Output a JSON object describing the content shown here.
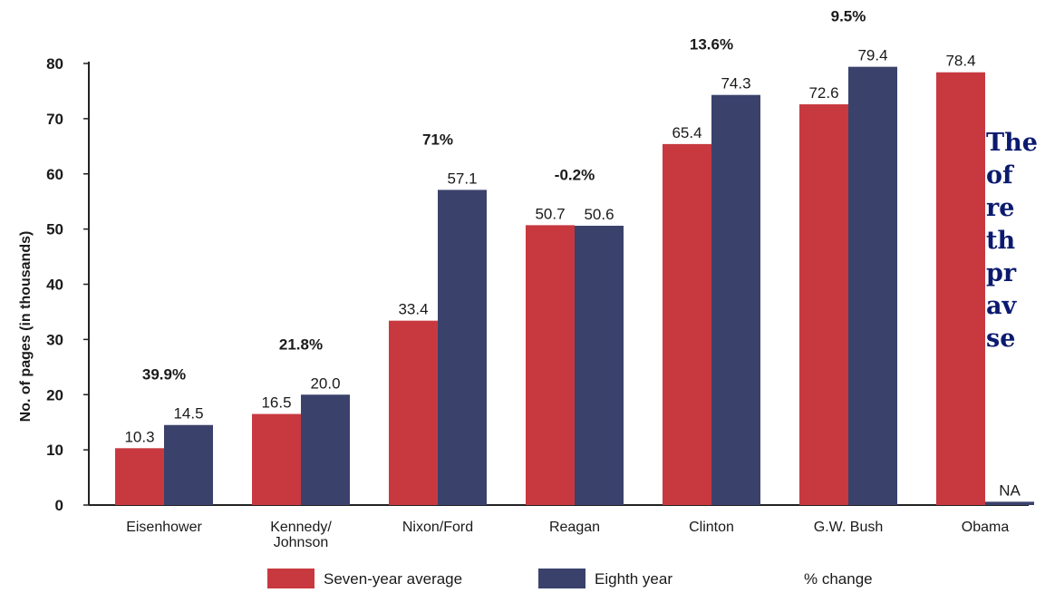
{
  "chart_data": {
    "type": "bar",
    "title": "",
    "ylabel": "No. of pages  (in thousands)",
    "xlabel": "",
    "ylim": [
      0,
      80
    ],
    "yticks": [
      0,
      10,
      20,
      30,
      40,
      50,
      60,
      70,
      80
    ],
    "categories": [
      [
        "Eisenhower"
      ],
      [
        "Kennedy/",
        "Johnson"
      ],
      [
        "Nixon/Ford"
      ],
      [
        "Reagan"
      ],
      [
        "Clinton"
      ],
      [
        "G.W. Bush"
      ],
      [
        "Obama"
      ]
    ],
    "series": [
      {
        "name": "Seven-year average",
        "color": "#c8393f",
        "values": [
          10.3,
          16.5,
          33.4,
          50.7,
          65.4,
          72.6,
          78.4
        ],
        "labels": [
          "10.3",
          "16.5",
          "33.4",
          "50.7",
          "65.4",
          "72.6",
          "78.4"
        ]
      },
      {
        "name": "Eighth year",
        "color": "#3a426c",
        "values": [
          14.5,
          20.0,
          57.1,
          50.6,
          74.3,
          79.4,
          0.6
        ],
        "labels": [
          "14.5",
          "20.0",
          "57.1",
          "50.6",
          "74.3",
          "79.4",
          "NA"
        ]
      }
    ],
    "percent_change": [
      "39.9%",
      "21.8%",
      "71%",
      "-0.2%",
      "13.6%",
      "9.5%",
      ""
    ],
    "percent_change_legend": "% change",
    "legend_position": "bottom",
    "grid": false
  },
  "side_text": "The\nof\nre\nth\npr\nav\nse"
}
